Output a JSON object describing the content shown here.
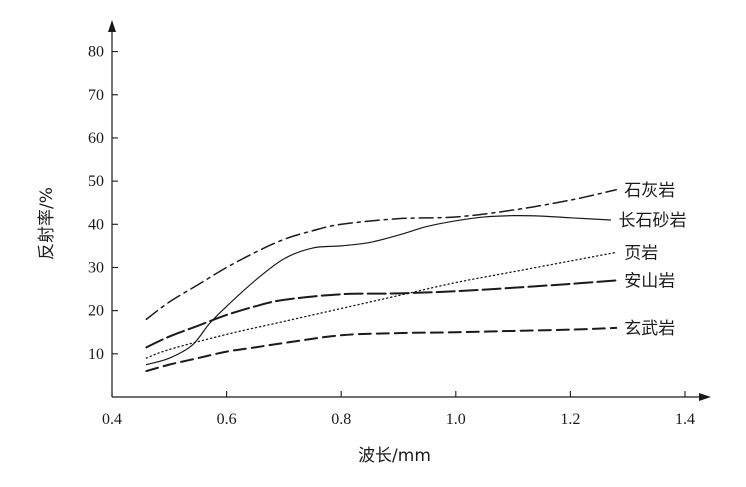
{
  "chart_data": {
    "type": "line",
    "xlabel": "波长/mm",
    "ylabel": "反射率/%",
    "xlim": [
      0.4,
      1.4
    ],
    "ylim": [
      0,
      85
    ],
    "xticks": [
      "0.4",
      "0.6",
      "0.8",
      "1.0",
      "1.2",
      "1.4"
    ],
    "yticks": [
      "10",
      "20",
      "30",
      "40",
      "50",
      "60",
      "70",
      "80"
    ],
    "grid": false,
    "legend": "inline labels at right end of each line",
    "series": [
      {
        "name": "石灰岩",
        "style": "dash-dot",
        "x": [
          0.46,
          0.5,
          0.55,
          0.6,
          0.65,
          0.7,
          0.75,
          0.8,
          0.9,
          1.0,
          1.1,
          1.2,
          1.28
        ],
        "y": [
          18,
          22,
          26,
          30,
          33.5,
          36.5,
          38.5,
          40,
          41.3,
          41.7,
          43.3,
          45.6,
          48
        ]
      },
      {
        "name": "长石砂岩",
        "style": "solid",
        "x": [
          0.46,
          0.5,
          0.54,
          0.57,
          0.6,
          0.65,
          0.7,
          0.75,
          0.8,
          0.85,
          0.9,
          0.95,
          1.0,
          1.05,
          1.1,
          1.15,
          1.2,
          1.27
        ],
        "y": [
          7.5,
          9,
          12,
          17,
          21,
          27,
          32,
          34.5,
          35,
          35.8,
          37.5,
          39.5,
          40.8,
          41.7,
          42,
          41.9,
          41.5,
          41
        ]
      },
      {
        "name": "页岩",
        "style": "dotted",
        "x": [
          0.46,
          0.5,
          0.6,
          0.7,
          0.8,
          0.9,
          1.0,
          1.1,
          1.2,
          1.28
        ],
        "y": [
          9,
          11,
          14.5,
          17.5,
          20.5,
          23.5,
          26.5,
          29,
          31.5,
          33.5
        ]
      },
      {
        "name": "安山岩",
        "style": "long-dash",
        "x": [
          0.46,
          0.5,
          0.55,
          0.6,
          0.65,
          0.7,
          0.8,
          0.9,
          1.0,
          1.1,
          1.2,
          1.28
        ],
        "y": [
          11.5,
          14,
          16.5,
          19,
          21,
          22.5,
          23.8,
          24,
          24.5,
          25.3,
          26.2,
          27
        ]
      },
      {
        "name": "玄武岩",
        "style": "dashed",
        "x": [
          0.46,
          0.5,
          0.55,
          0.6,
          0.65,
          0.7,
          0.8,
          0.9,
          1.0,
          1.1,
          1.2,
          1.28
        ],
        "y": [
          6,
          7.5,
          9,
          10.5,
          11.5,
          12.5,
          14.3,
          14.8,
          15,
          15.3,
          15.6,
          16
        ]
      }
    ]
  }
}
